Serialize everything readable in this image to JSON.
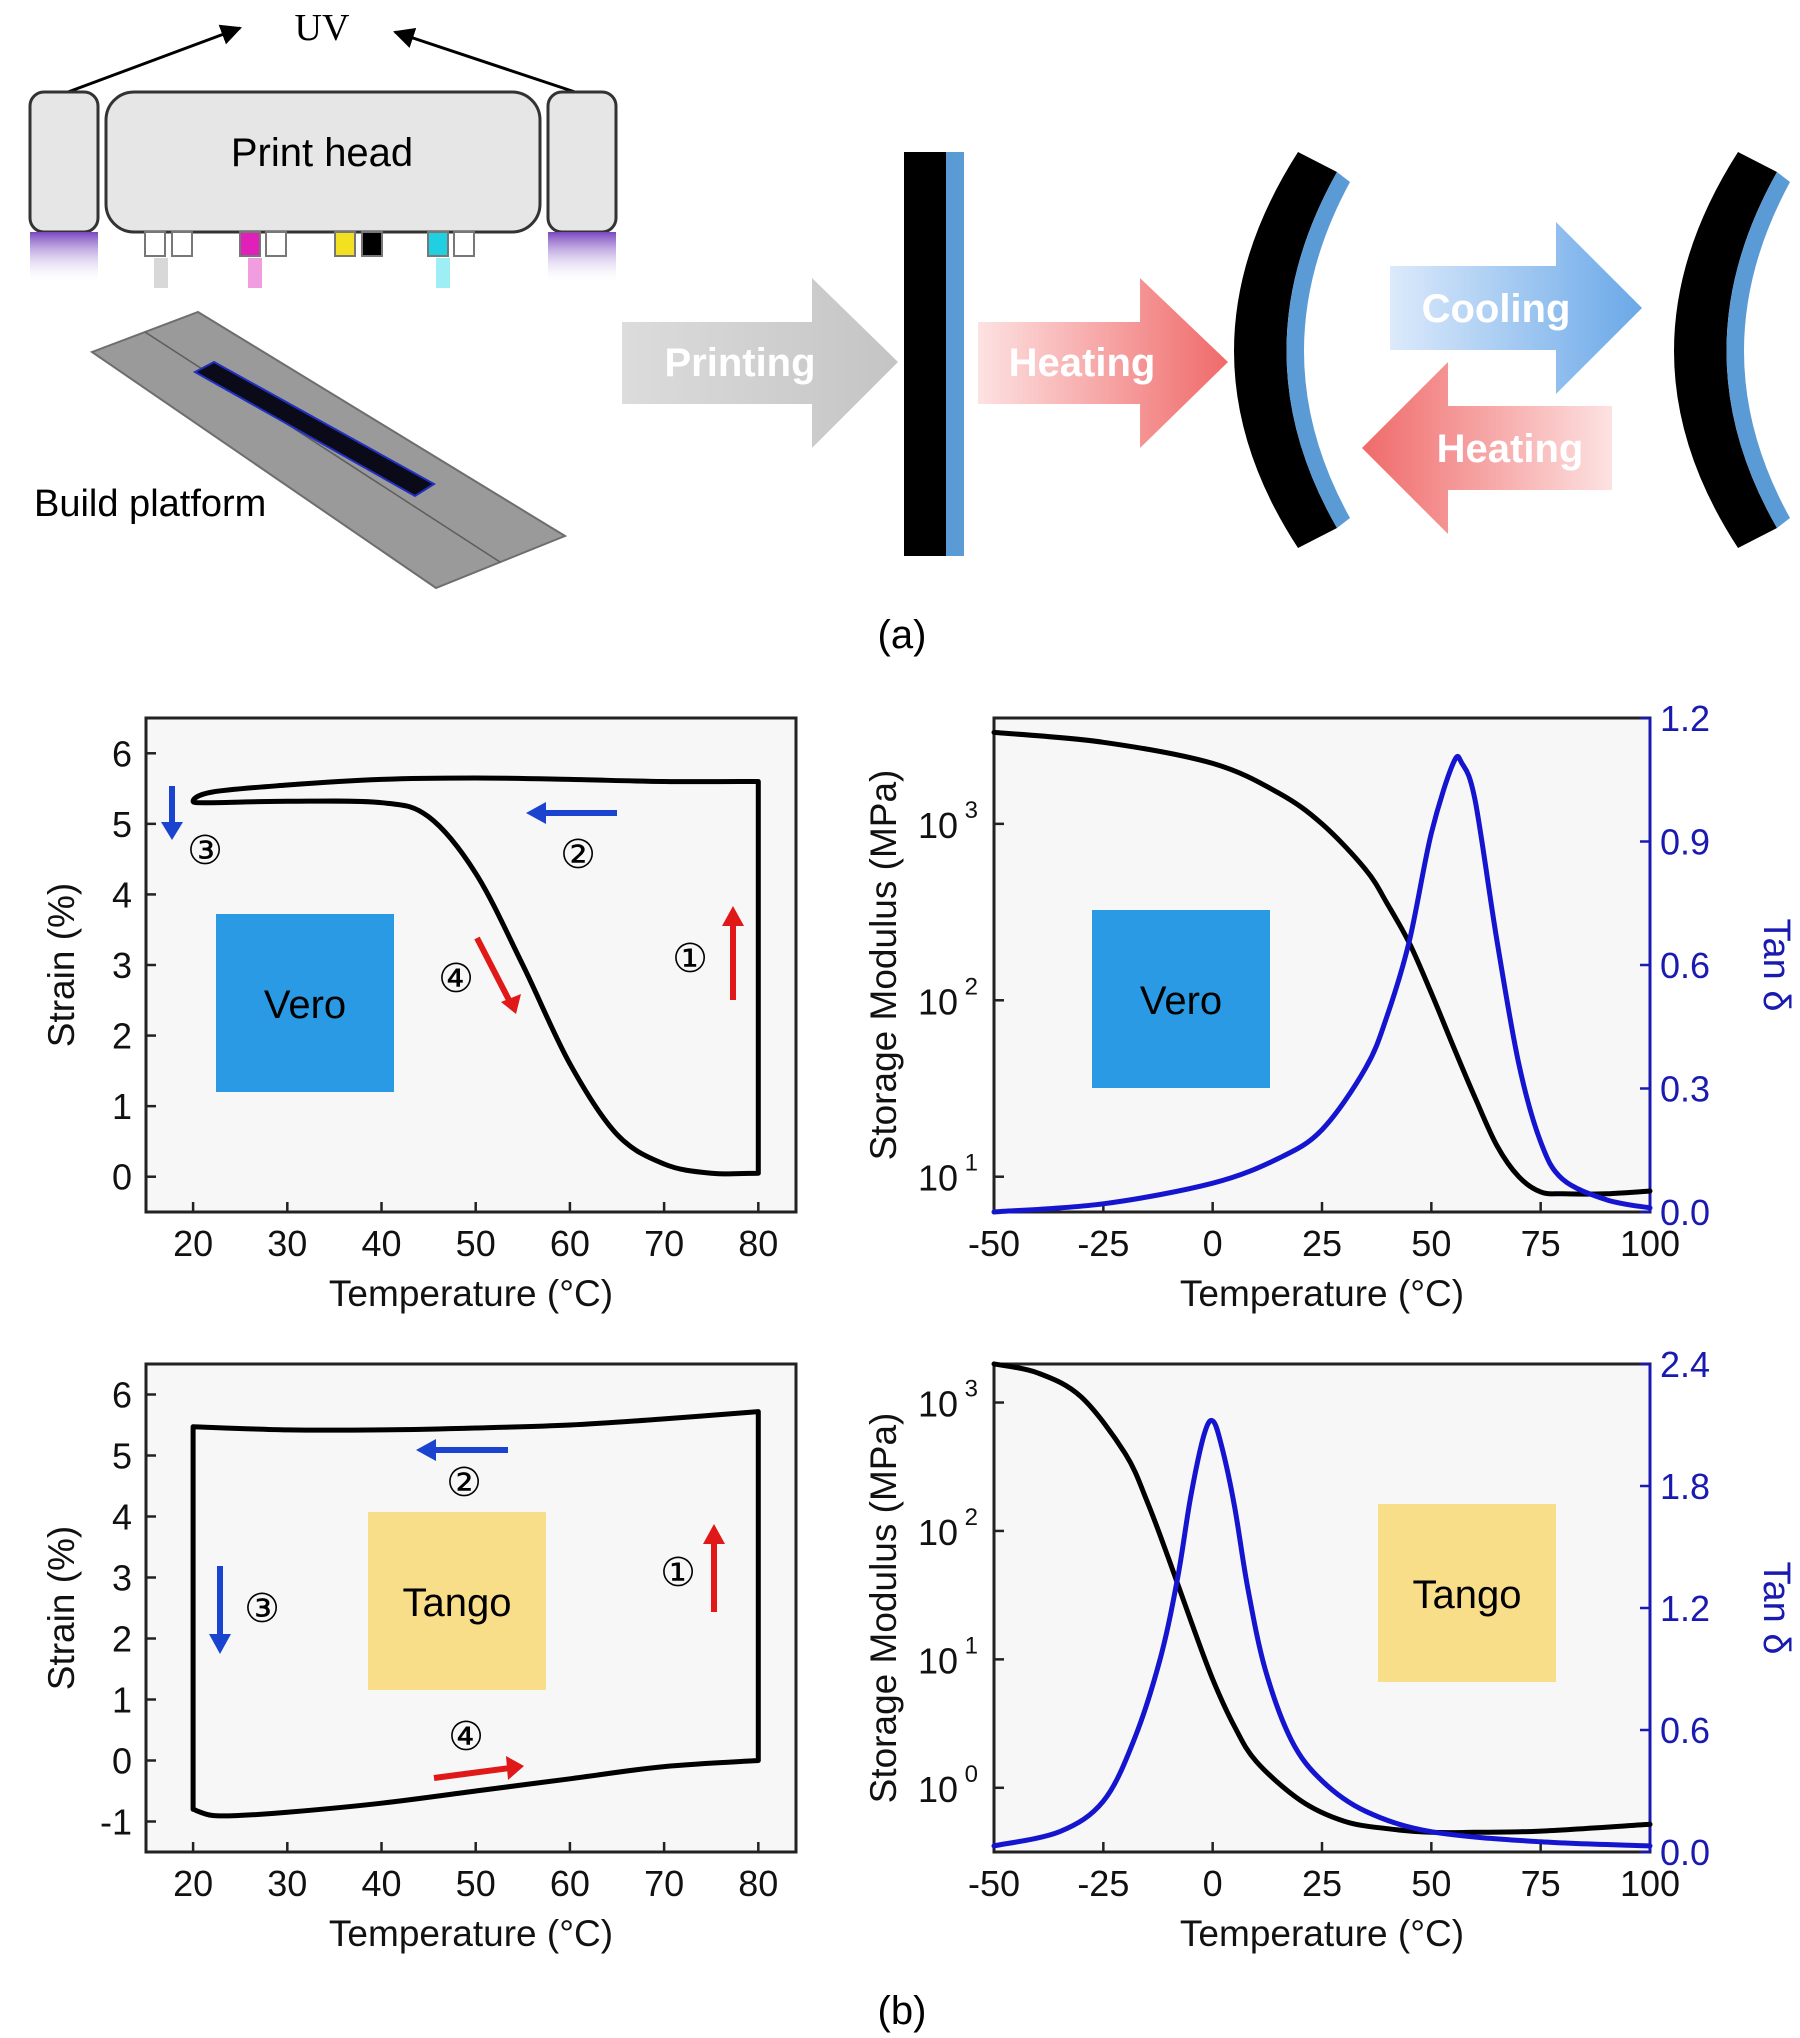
{
  "panel_a": {
    "uv_label": "UV",
    "print_head_label": "Print head",
    "build_platform_label": "Build platform",
    "arrows": {
      "printing": "Printing",
      "heating_1": "Heating",
      "cooling": "Cooling",
      "heating_2": "Heating"
    },
    "caption": "(a)",
    "colors": {
      "grey_arrow": "#c8c8c8",
      "heating_arrow": "#f07070",
      "cooling_arrow": "#6aa8e8",
      "layer_blue": "#5b9bd5",
      "layer_black": "#000000",
      "uv_glow": "#8a5cc8"
    }
  },
  "panel_b": {
    "caption": "(b)",
    "labels": {
      "vero": "Vero",
      "tango": "Tango"
    },
    "step_markers": [
      "①",
      "②",
      "③",
      "④"
    ],
    "colors": {
      "vero_box": "#2a9ae4",
      "tango_box": "#f9de8a",
      "modulus_curve": "#000000",
      "tan_curve": "#1515d0",
      "right_axis": "#1a1ab0",
      "step_up": "#e01818",
      "step_down": "#1a44d0"
    }
  },
  "chart_data": [
    {
      "type": "line",
      "xlabel": "Temperature (°C)",
      "ylabel": "Strain (%)",
      "xlim": [
        15,
        84
      ],
      "ylim": [
        -0.5,
        6.5
      ],
      "xticks": [
        "20",
        "30",
        "40",
        "50",
        "60",
        "70",
        "80"
      ],
      "yticks": [
        "0",
        "1",
        "2",
        "3",
        "4",
        "5",
        "6"
      ],
      "series": [
        {
          "x": [
            80,
            80,
            70,
            60,
            50,
            40,
            30,
            22,
            20,
            22,
            30,
            40,
            45,
            50,
            55,
            60,
            65,
            70,
            75,
            80,
            80
          ],
          "y": [
            0.1,
            5.6,
            5.6,
            5.63,
            5.65,
            5.63,
            5.55,
            5.45,
            5.32,
            5.3,
            5.32,
            5.3,
            5.1,
            4.3,
            3.0,
            1.6,
            0.6,
            0.18,
            0.05,
            0.05,
            0.1
          ]
        }
      ],
      "annotations": [
        "①",
        "②",
        "③",
        "④",
        "Vero"
      ]
    },
    {
      "type": "line",
      "xlabel": "Temperature (°C)",
      "ylabel": "Storage Modulus (MPa)",
      "y2label": "Tan δ",
      "xlim": [
        -50,
        100
      ],
      "ylim_log10": [
        0.8,
        3.6
      ],
      "y2lim": [
        0,
        1.2
      ],
      "xticks": [
        "-50",
        "-25",
        "0",
        "25",
        "50",
        "75",
        "100"
      ],
      "y2ticks": [
        "0.0",
        "0.3",
        "0.6",
        "0.9",
        "1.2"
      ],
      "yticks": [
        {
          "base": "10",
          "exp": "1"
        },
        {
          "base": "10",
          "exp": "2"
        },
        {
          "base": "10",
          "exp": "3"
        }
      ],
      "series": [
        {
          "axis": "left",
          "x": [
            -50,
            -25,
            0,
            15,
            25,
            35,
            40,
            45,
            50,
            55,
            60,
            65,
            70,
            75,
            80,
            90,
            100
          ],
          "y": [
            3300,
            2900,
            2200,
            1500,
            1000,
            550,
            350,
            210,
            110,
            55,
            28,
            15,
            10,
            8.2,
            8.0,
            8.0,
            8.3
          ]
        },
        {
          "axis": "right",
          "x": [
            -50,
            -25,
            0,
            15,
            25,
            35,
            40,
            45,
            50,
            55,
            57,
            60,
            65,
            70,
            75,
            80,
            90,
            100
          ],
          "y": [
            0.0,
            0.02,
            0.07,
            0.13,
            0.2,
            0.35,
            0.48,
            0.66,
            0.92,
            1.09,
            1.09,
            1.0,
            0.66,
            0.36,
            0.17,
            0.08,
            0.03,
            0.01
          ]
        }
      ],
      "annotations": [
        "Vero"
      ]
    },
    {
      "type": "line",
      "xlabel": "Temperature (°C)",
      "ylabel": "Strain (%)",
      "xlim": [
        15,
        84
      ],
      "ylim": [
        -1.5,
        6.5
      ],
      "xticks": [
        "20",
        "30",
        "40",
        "50",
        "60",
        "70",
        "80"
      ],
      "yticks": [
        "-1",
        "0",
        "1",
        "2",
        "3",
        "4",
        "5",
        "6"
      ],
      "series": [
        {
          "x": [
            80,
            80,
            70,
            60,
            50,
            40,
            30,
            20,
            20,
            22,
            25,
            30,
            40,
            50,
            60,
            70,
            80
          ],
          "y": [
            0.0,
            5.72,
            5.6,
            5.5,
            5.45,
            5.42,
            5.42,
            5.47,
            -0.8,
            -0.9,
            -0.9,
            -0.85,
            -0.7,
            -0.5,
            -0.3,
            -0.1,
            0.0
          ]
        }
      ],
      "annotations": [
        "①",
        "②",
        "③",
        "④",
        "Tango"
      ]
    },
    {
      "type": "line",
      "xlabel": "Temperature (°C)",
      "ylabel": "Storage Modulus (MPa)",
      "y2label": "Tan δ",
      "xlim": [
        -50,
        100
      ],
      "ylim_log10": [
        -0.5,
        3.3
      ],
      "y2lim": [
        0,
        2.4
      ],
      "xticks": [
        "-50",
        "-25",
        "0",
        "25",
        "50",
        "75",
        "100"
      ],
      "y2ticks": [
        "0.0",
        "0.6",
        "1.2",
        "1.8",
        "2.4"
      ],
      "yticks": [
        {
          "base": "10",
          "exp": "0"
        },
        {
          "base": "10",
          "exp": "1"
        },
        {
          "base": "10",
          "exp": "2"
        },
        {
          "base": "10",
          "exp": "3"
        }
      ],
      "series": [
        {
          "axis": "left",
          "x": [
            -50,
            -40,
            -30,
            -20,
            -15,
            -10,
            -5,
            0,
            5,
            10,
            20,
            30,
            40,
            50,
            60,
            75,
            100
          ],
          "y": [
            2000,
            1700,
            1100,
            400,
            170,
            60,
            20,
            7,
            3,
            1.6,
            0.8,
            0.55,
            0.48,
            0.45,
            0.45,
            0.46,
            0.52
          ]
        },
        {
          "axis": "right",
          "x": [
            -50,
            -35,
            -25,
            -18,
            -12,
            -8,
            -5,
            -2,
            0,
            2,
            5,
            8,
            12,
            18,
            25,
            35,
            50,
            75,
            100
          ],
          "y": [
            0.03,
            0.1,
            0.25,
            0.55,
            0.95,
            1.35,
            1.75,
            2.05,
            2.12,
            2.0,
            1.7,
            1.3,
            0.9,
            0.55,
            0.35,
            0.2,
            0.1,
            0.05,
            0.03
          ]
        }
      ],
      "annotations": [
        "Tango"
      ]
    }
  ]
}
